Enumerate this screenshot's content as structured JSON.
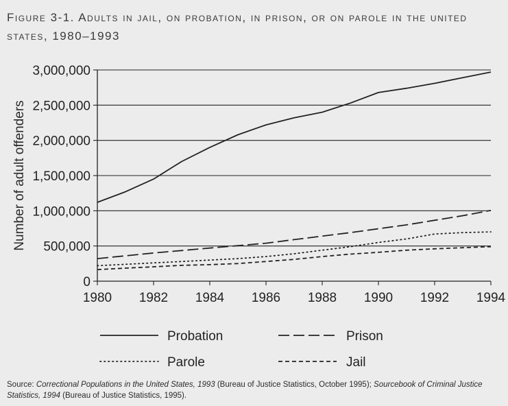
{
  "figure": {
    "title": "Figure 3-1. Adults in jail, on probation, in prison, or on parole in the united states, 1980–1993",
    "source": [
      {
        "text": "Source: ",
        "italic": false
      },
      {
        "text": "Correctional Populations in the United States, 1993",
        "italic": true
      },
      {
        "text": " (Bureau of Justice Statistics, October 1995); ",
        "italic": false
      },
      {
        "text": "Sourcebook of Criminal Justice Statistics, 1994",
        "italic": true
      },
      {
        "text": " (Bureau of Justice Statistics, 1995).",
        "italic": false
      }
    ]
  },
  "chart_data": {
    "type": "line",
    "title": "Figure 3-1. Adults in jail, on probation, in prison, or on parole in the united states, 1980–1993",
    "xlabel": "",
    "ylabel": "Number of adult offenders",
    "xlim": [
      1980,
      1994
    ],
    "ylim": [
      0,
      3000000
    ],
    "x_ticks": [
      "1980",
      "1982",
      "1984",
      "1986",
      "1988",
      "1990",
      "1992",
      "1994"
    ],
    "y_ticks": [
      "0",
      "500,000",
      "1,000,000",
      "1,500,000",
      "2,000,000",
      "2,500,000",
      "3,000,000"
    ],
    "grid": "horizontal",
    "legend_position": "bottom",
    "series": [
      {
        "name": "Probation",
        "dash": "solid",
        "x": [
          1980,
          1981,
          1982,
          1983,
          1984,
          1985,
          1986,
          1987,
          1988,
          1989,
          1990,
          1991,
          1992,
          1993,
          1994
        ],
        "y": [
          1120000,
          1270000,
          1450000,
          1700000,
          1900000,
          2080000,
          2220000,
          2320000,
          2400000,
          2530000,
          2680000,
          2740000,
          2810000,
          2890000,
          2970000
        ]
      },
      {
        "name": "Prison",
        "dash": "long-dash",
        "x": [
          1980,
          1981,
          1982,
          1983,
          1984,
          1985,
          1986,
          1987,
          1988,
          1989,
          1990,
          1991,
          1992,
          1993,
          1994
        ],
        "y": [
          320000,
          360000,
          400000,
          435000,
          470000,
          505000,
          540000,
          590000,
          640000,
          690000,
          745000,
          800000,
          865000,
          930000,
          1005000
        ]
      },
      {
        "name": "Parole",
        "dash": "dotted",
        "x": [
          1980,
          1981,
          1982,
          1983,
          1984,
          1985,
          1986,
          1987,
          1988,
          1989,
          1990,
          1991,
          1992,
          1993,
          1994
        ],
        "y": [
          220000,
          240000,
          260000,
          280000,
          300000,
          320000,
          350000,
          390000,
          440000,
          490000,
          550000,
          600000,
          670000,
          690000,
          700000
        ]
      },
      {
        "name": "Jail",
        "dash": "short-dash",
        "x": [
          1980,
          1981,
          1982,
          1983,
          1984,
          1985,
          1986,
          1987,
          1988,
          1989,
          1990,
          1991,
          1992,
          1993,
          1994
        ],
        "y": [
          165000,
          185000,
          205000,
          225000,
          235000,
          250000,
          280000,
          310000,
          350000,
          385000,
          410000,
          440000,
          460000,
          475000,
          490000
        ]
      }
    ]
  }
}
